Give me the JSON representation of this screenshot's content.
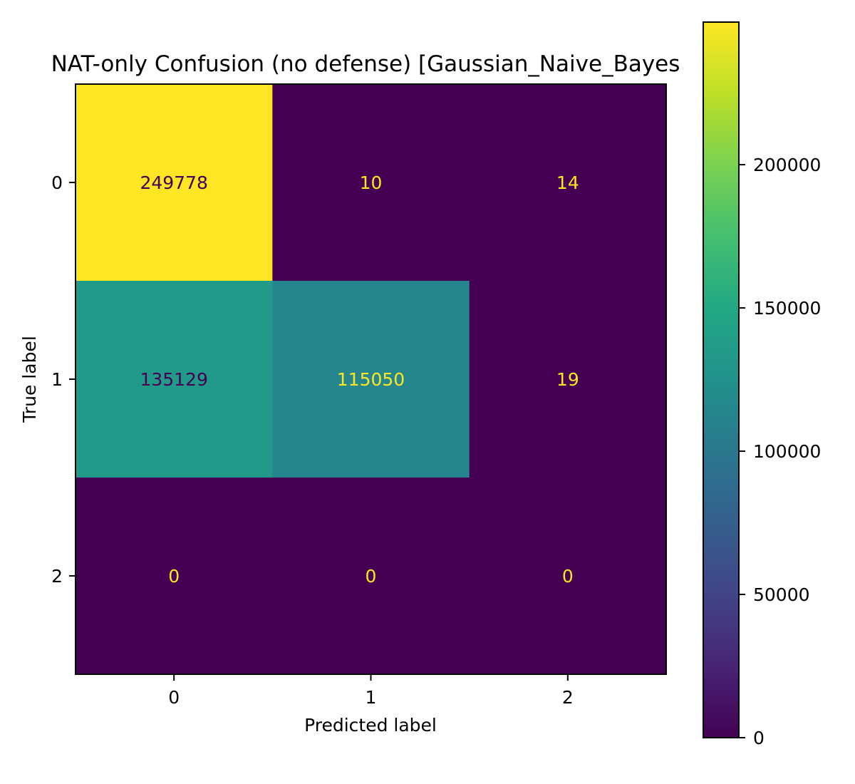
{
  "chart_data": {
    "type": "heatmap",
    "title": "NAT-only Confusion (no defense) [Gaussian_Naive_Bayes",
    "xlabel": "Predicted label",
    "ylabel": "True label",
    "x_categories": [
      "0",
      "1",
      "2"
    ],
    "y_categories": [
      "0",
      "1",
      "2"
    ],
    "matrix": [
      [
        249778,
        10,
        14
      ],
      [
        135129,
        115050,
        19
      ],
      [
        0,
        0,
        0
      ]
    ],
    "colormap": "viridis",
    "colorbar": {
      "min": 0,
      "max": 249778,
      "ticks": [
        0,
        50000,
        100000,
        150000,
        200000
      ],
      "tick_labels": [
        "0",
        "50000",
        "100000",
        "150000",
        "200000"
      ]
    },
    "text_colors": {
      "on_light": "#440154",
      "on_dark": "#fde725"
    },
    "grid": false
  }
}
